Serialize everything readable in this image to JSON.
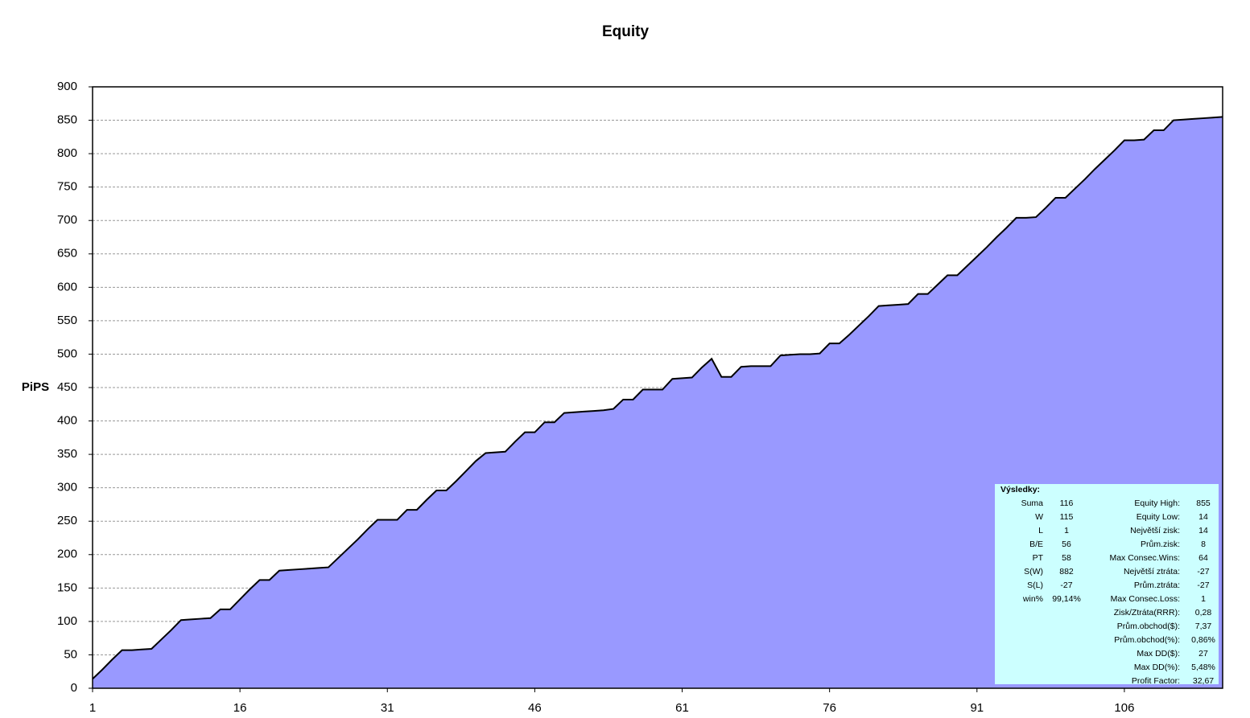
{
  "chart_data": {
    "type": "area",
    "title": "Equity",
    "y_label": "PiPS",
    "x": [
      1,
      2,
      3,
      4,
      5,
      6,
      7,
      8,
      9,
      10,
      11,
      12,
      13,
      14,
      15,
      16,
      17,
      18,
      19,
      20,
      21,
      22,
      23,
      24,
      25,
      26,
      27,
      28,
      29,
      30,
      31,
      32,
      33,
      34,
      35,
      36,
      37,
      38,
      39,
      40,
      41,
      42,
      43,
      44,
      45,
      46,
      47,
      48,
      49,
      50,
      51,
      52,
      53,
      54,
      55,
      56,
      57,
      58,
      59,
      60,
      61,
      62,
      63,
      64,
      65,
      66,
      67,
      68,
      69,
      70,
      71,
      72,
      73,
      74,
      75,
      76,
      77,
      78,
      79,
      80,
      81,
      82,
      83,
      84,
      85,
      86,
      87,
      88,
      89,
      90,
      91,
      92,
      93,
      94,
      95,
      96,
      97,
      98,
      99,
      100,
      101,
      102,
      103,
      104,
      105,
      106,
      107,
      108,
      109,
      110,
      111,
      112,
      113,
      114,
      115,
      116
    ],
    "values": [
      14,
      28,
      43,
      57,
      57,
      58,
      59,
      73,
      87,
      102,
      103,
      104,
      105,
      118,
      118,
      133,
      148,
      162,
      162,
      176,
      177,
      178,
      179,
      180,
      181,
      195,
      209,
      223,
      238,
      252,
      252,
      252,
      267,
      267,
      282,
      296,
      296,
      310,
      325,
      340,
      352,
      353,
      354,
      369,
      383,
      383,
      398,
      398,
      412,
      413,
      414,
      415,
      416,
      418,
      432,
      432,
      447,
      447,
      447,
      463,
      464,
      465,
      480,
      493,
      466,
      466,
      481,
      482,
      482,
      482,
      498,
      499,
      500,
      500,
      501,
      516,
      516,
      529,
      543,
      557,
      572,
      573,
      574,
      575,
      590,
      590,
      604,
      618,
      618,
      632,
      646,
      660,
      675,
      689,
      704,
      704,
      705,
      719,
      734,
      734,
      748,
      762,
      777,
      791,
      805,
      820,
      820,
      821,
      835,
      835,
      850,
      851,
      852,
      853,
      854,
      855
    ],
    "color": "#9999ff",
    "line_color": "#000000",
    "xlim": [
      1,
      116
    ],
    "xticks": [
      1,
      16,
      31,
      46,
      61,
      76,
      91,
      106
    ],
    "ylim": [
      0,
      900
    ],
    "yticks": [
      0,
      50,
      100,
      150,
      200,
      250,
      300,
      350,
      400,
      450,
      500,
      550,
      600,
      650,
      700,
      750,
      800,
      850,
      900
    ],
    "grid": true,
    "stats_box": {
      "title": "Výsledky:",
      "color": "#ccffff",
      "negative_color": "#ff0000",
      "left": [
        [
          "Suma",
          "116"
        ],
        [
          "W",
          "115"
        ],
        [
          "L",
          "1"
        ],
        [
          "B/E",
          "56"
        ],
        [
          "PT",
          "58"
        ],
        [
          "S(W)",
          "882"
        ],
        [
          "S(L)",
          "-27"
        ],
        [
          "win%",
          "99,14%"
        ]
      ],
      "right": [
        [
          "Equity High:",
          "855"
        ],
        [
          "Equity Low:",
          "14"
        ],
        [
          "Největší zisk:",
          "14"
        ],
        [
          "Prům.zisk:",
          "8"
        ],
        [
          "Max Consec.Wins:",
          "64"
        ],
        [
          "Největší ztráta:",
          "-27"
        ],
        [
          "Prům.ztráta:",
          "-27"
        ],
        [
          "Max Consec.Loss:",
          "1"
        ],
        [
          "Zisk/Ztráta(RRR):",
          "0,28"
        ],
        [
          "Prům.obchod($):",
          "7,37"
        ],
        [
          "Prům.obchod(%):",
          "0,86%"
        ],
        [
          "Max DD($):",
          "27"
        ],
        [
          "Max DD(%):",
          "5,48%"
        ],
        [
          "Profit Factor:",
          "32,67"
        ]
      ]
    }
  }
}
